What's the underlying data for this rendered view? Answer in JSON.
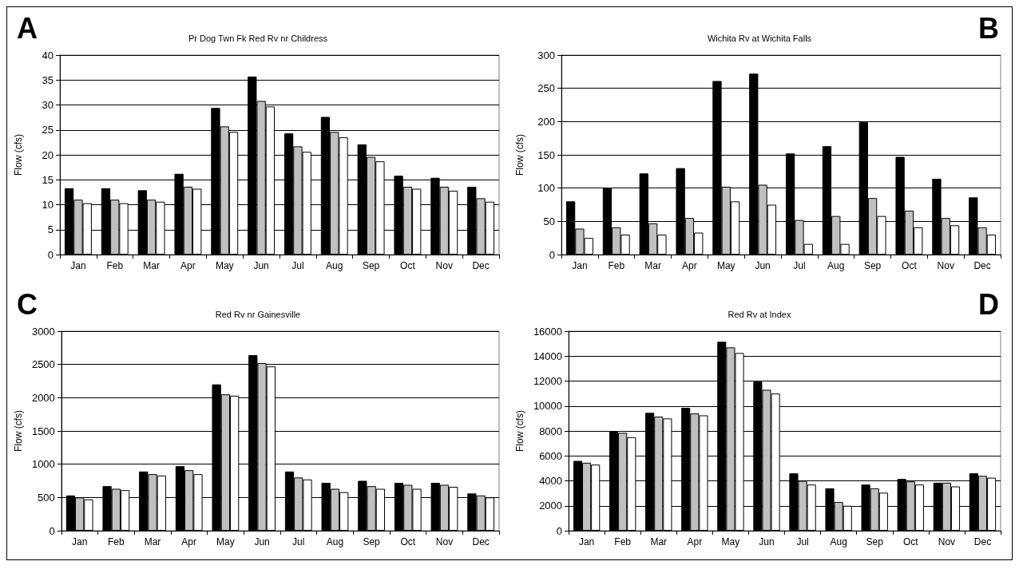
{
  "chart_data": [
    {
      "type": "bar",
      "title": "Pr Dog Twn Fk Red Rv nr Childress",
      "annotations": [
        "A"
      ],
      "ylabel": "Flow (cfs)",
      "categories": [
        "Jan",
        "Feb",
        "Mar",
        "Apr",
        "May",
        "Jun",
        "Jul",
        "Aug",
        "Sep",
        "Oct",
        "Nov",
        "Dec"
      ],
      "ylim": [
        0,
        40
      ],
      "yticks": [
        0,
        5,
        10,
        15,
        20,
        25,
        30,
        35,
        40
      ],
      "grid": "y",
      "series": [
        {
          "color": "#000000",
          "values": [
            13.3,
            13.3,
            12.9,
            16.2,
            29.4,
            35.7,
            24.3,
            27.6,
            22.1,
            15.8,
            15.4,
            13.6
          ]
        },
        {
          "color": "#c0c0c0",
          "values": [
            11,
            11,
            11,
            13.6,
            25.7,
            30.8,
            21.7,
            24.6,
            19.6,
            13.6,
            13.6,
            11.3
          ]
        },
        {
          "color": "#ffffff",
          "values": [
            10.3,
            10.3,
            10.6,
            13.2,
            24.6,
            29.7,
            20.6,
            23.5,
            18.7,
            13.2,
            12.8,
            10.6
          ]
        }
      ]
    },
    {
      "type": "bar",
      "title": "Wichita Rv at Wichita Falls",
      "annotations": [
        "B"
      ],
      "ylabel": "Flow (cfs)",
      "categories": [
        "Jan",
        "Feb",
        "Mar",
        "Apr",
        "May",
        "Jun",
        "Jul",
        "Aug",
        "Sep",
        "Oct",
        "Nov",
        "Dec"
      ],
      "ylim": [
        0,
        300
      ],
      "yticks": [
        0,
        50,
        100,
        150,
        200,
        250,
        300
      ],
      "grid": "y",
      "series": [
        {
          "color": "#000000",
          "values": [
            80,
            100,
            122,
            130,
            261,
            272,
            152,
            163,
            199,
            147,
            114,
            86
          ]
        },
        {
          "color": "#c0c0c0",
          "values": [
            39,
            41,
            47,
            55,
            102,
            105,
            52,
            58,
            85,
            66,
            55,
            41
          ]
        },
        {
          "color": "#ffffff",
          "values": [
            25,
            30,
            30,
            33,
            80,
            75,
            16,
            16,
            58,
            41,
            44,
            30
          ]
        }
      ]
    },
    {
      "type": "bar",
      "title": "Red Rv nr Gainesville",
      "annotations": [
        "C"
      ],
      "ylabel": "Flow (cfs)",
      "categories": [
        "Jan",
        "Feb",
        "Mar",
        "Apr",
        "May",
        "Jun",
        "Jul",
        "Aug",
        "Sep",
        "Oct",
        "Nov",
        "Dec"
      ],
      "ylim": [
        0,
        3000
      ],
      "yticks": [
        0,
        500,
        1000,
        1500,
        2000,
        2500,
        3000
      ],
      "grid": "y",
      "series": [
        {
          "color": "#000000",
          "values": [
            530,
            670,
            890,
            970,
            2200,
            2640,
            890,
            720,
            750,
            720,
            720,
            560
          ]
        },
        {
          "color": "#c0c0c0",
          "values": [
            500,
            630,
            850,
            910,
            2050,
            2520,
            800,
            630,
            670,
            690,
            690,
            530
          ]
        },
        {
          "color": "#ffffff",
          "values": [
            470,
            610,
            830,
            850,
            2030,
            2470,
            770,
            580,
            630,
            630,
            660,
            500
          ]
        }
      ]
    },
    {
      "type": "bar",
      "title": "Red Rv at Index",
      "annotations": [
        "D"
      ],
      "ylabel": "Flow (cfs)",
      "categories": [
        "Jan",
        "Feb",
        "Mar",
        "Apr",
        "May",
        "Jun",
        "Jul",
        "Aug",
        "Sep",
        "Oct",
        "Nov",
        "Dec"
      ],
      "ylim": [
        0,
        16000
      ],
      "yticks": [
        0,
        2000,
        4000,
        6000,
        8000,
        10000,
        12000,
        14000,
        16000
      ],
      "grid": "y",
      "series": [
        {
          "color": "#000000",
          "values": [
            5600,
            8000,
            9450,
            9850,
            15150,
            11950,
            4600,
            3400,
            3700,
            4150,
            3850,
            4600
          ]
        },
        {
          "color": "#c0c0c0",
          "values": [
            5450,
            7850,
            9150,
            9400,
            14700,
            11300,
            4000,
            2300,
            3400,
            3950,
            3850,
            4400
          ]
        },
        {
          "color": "#ffffff",
          "values": [
            5300,
            7500,
            9000,
            9250,
            14250,
            11000,
            3700,
            2000,
            3050,
            3700,
            3550,
            4250
          ]
        }
      ]
    }
  ]
}
